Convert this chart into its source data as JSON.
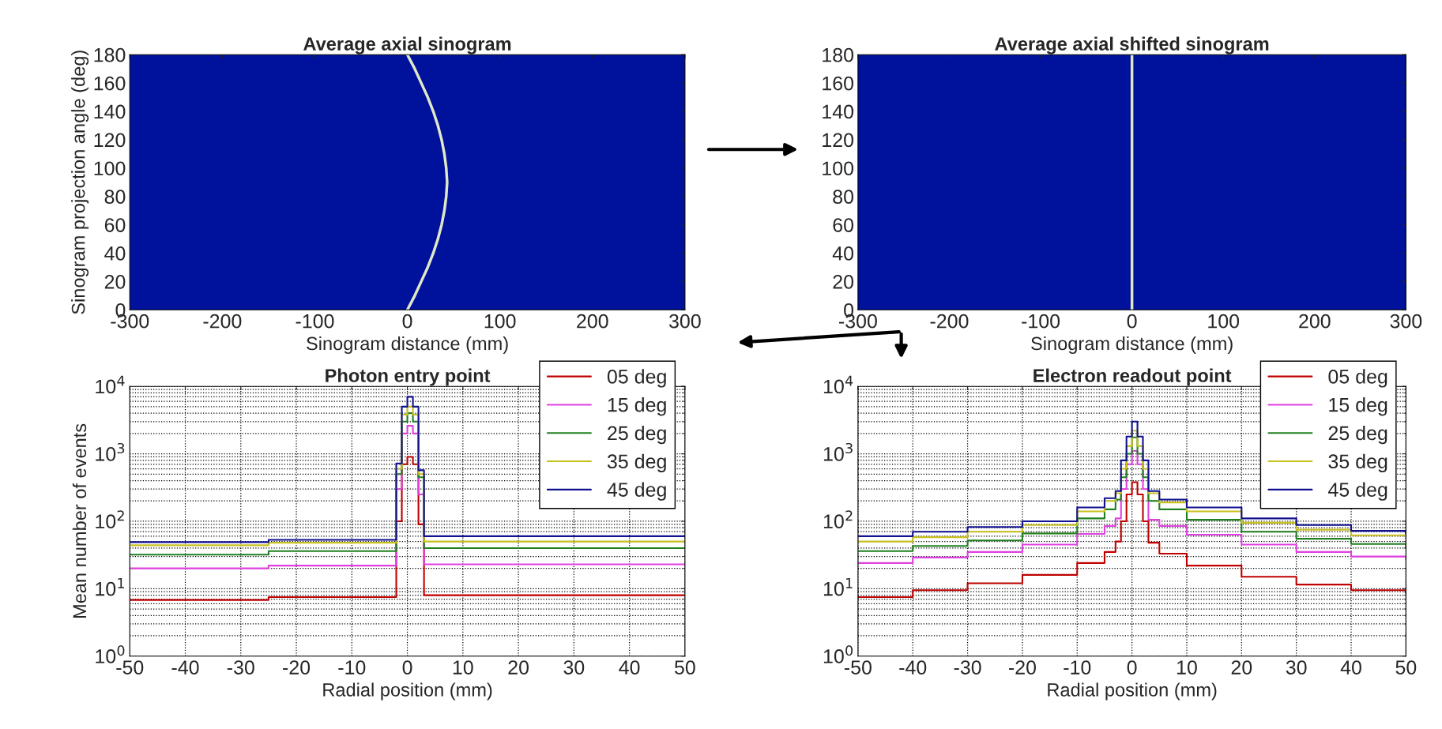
{
  "chart_data": [
    {
      "type": "line",
      "title": "Average axial sinogram",
      "xlabel": "Sinogram distance (mm)",
      "ylabel": "Sinogram projection angle (deg)",
      "xlim": [
        -300,
        300
      ],
      "xticks": [
        -300,
        -200,
        -100,
        0,
        100,
        200,
        300
      ],
      "ylim": [
        0,
        180
      ],
      "yticks": [
        0,
        20,
        40,
        60,
        80,
        100,
        120,
        140,
        160,
        180
      ],
      "series": [
        {
          "color": "#e0e8c8",
          "x": [
            0,
            8,
            15,
            22,
            28,
            33,
            37,
            40,
            42,
            43,
            42,
            40,
            37,
            33,
            28,
            22,
            15,
            8,
            0
          ],
          "values": [
            0,
            10,
            20,
            30,
            40,
            50,
            60,
            70,
            80,
            90,
            100,
            110,
            120,
            130,
            140,
            150,
            160,
            170,
            180
          ]
        }
      ]
    },
    {
      "type": "line",
      "title": "Average axial shifted sinogram",
      "xlabel": "Sinogram distance (mm)",
      "xlim": [
        -300,
        300
      ],
      "xticks": [
        -300,
        -200,
        -100,
        0,
        100,
        200,
        300
      ],
      "ylim": [
        0,
        180
      ],
      "yticks": [
        0,
        20,
        40,
        60,
        80,
        100,
        120,
        140,
        160,
        180
      ],
      "series": [
        {
          "color": "#e0e8c8",
          "x": [
            0,
            0,
            0,
            0,
            0,
            0,
            0,
            0,
            0,
            0
          ],
          "values": [
            0,
            20,
            40,
            60,
            80,
            100,
            120,
            140,
            160,
            180
          ]
        }
      ]
    },
    {
      "type": "step",
      "title": "Photon entry point",
      "xlabel": "Radial position (mm)",
      "ylabel": "Mean number of events",
      "log": "y",
      "grid": true,
      "legend": "top right",
      "xlim": [
        -50,
        50
      ],
      "xticks": [
        -50,
        -40,
        -30,
        -20,
        -10,
        0,
        10,
        20,
        30,
        40,
        50
      ],
      "ylim": [
        1,
        10000
      ],
      "yticks": [
        {
          "value": 1,
          "label": "10$^{0}$"
        },
        {
          "value": 10,
          "label": "10$^{1}$"
        },
        {
          "value": 100,
          "label": "10$^{2}$"
        },
        {
          "value": 1000,
          "label": "10$^{3}$"
        },
        {
          "value": 10000,
          "label": "10$^{4}$"
        }
      ],
      "x": [
        -50,
        -25,
        -2,
        -1,
        0,
        1,
        2,
        3,
        25,
        50
      ],
      "series": [
        {
          "name": "05 deg",
          "color": "#c00000",
          "values": [
            6.8,
            7.5,
            100,
            700,
            900,
            700,
            90,
            8,
            8,
            8
          ]
        },
        {
          "name": "15 deg",
          "color": "#e040e0",
          "values": [
            20,
            22,
            300,
            2000,
            2600,
            2000,
            250,
            23,
            23,
            23
          ]
        },
        {
          "name": "25 deg",
          "color": "#208020",
          "values": [
            32,
            36,
            500,
            3000,
            4000,
            3000,
            450,
            40,
            40,
            40
          ]
        },
        {
          "name": "35 deg",
          "color": "#c8c020",
          "values": [
            44,
            48,
            600,
            3800,
            5000,
            3800,
            500,
            50,
            50,
            50
          ]
        },
        {
          "name": "45 deg",
          "color": "#101090",
          "values": [
            49,
            53,
            720,
            5000,
            7000,
            5000,
            570,
            60,
            60,
            60
          ]
        }
      ]
    },
    {
      "type": "step",
      "title": "Electron readout point",
      "xlabel": "Radial position (mm)",
      "log": "y",
      "grid": true,
      "legend": "top right",
      "xlim": [
        -50,
        50
      ],
      "xticks": [
        -50,
        -40,
        -30,
        -20,
        -10,
        0,
        10,
        20,
        30,
        40,
        50
      ],
      "ylim": [
        1,
        10000
      ],
      "yticks": [
        {
          "value": 1,
          "label": "10$^{0}$"
        },
        {
          "value": 10,
          "label": "10$^{1}$"
        },
        {
          "value": 100,
          "label": "10$^{2}$"
        },
        {
          "value": 1000,
          "label": "10$^{3}$"
        },
        {
          "value": 10000,
          "label": "10$^{4}$"
        }
      ],
      "x": [
        -50,
        -40,
        -30,
        -20,
        -10,
        -5,
        -3,
        -2,
        -1,
        0,
        1,
        2,
        3,
        5,
        10,
        20,
        30,
        40,
        50
      ],
      "series": [
        {
          "name": "05 deg",
          "color": "#c00000",
          "values": [
            7.5,
            9.5,
            12,
            16,
            24,
            35,
            50,
            100,
            250,
            380,
            250,
            100,
            48,
            33,
            22,
            15,
            11.5,
            9.5,
            8.5
          ]
        },
        {
          "name": "15 deg",
          "color": "#e040e0",
          "values": [
            24,
            29,
            35,
            45,
            65,
            85,
            110,
            300,
            700,
            1100,
            700,
            300,
            105,
            85,
            63,
            45,
            35,
            30,
            27
          ]
        },
        {
          "name": "25 deg",
          "color": "#208020",
          "values": [
            36,
            43,
            52,
            66,
            110,
            150,
            210,
            450,
            1000,
            1750,
            1000,
            450,
            200,
            150,
            105,
            70,
            55,
            46,
            41
          ]
        },
        {
          "name": "35 deg",
          "color": "#c8c020",
          "values": [
            50,
            58,
            70,
            88,
            140,
            200,
            260,
            600,
            1300,
            2200,
            1300,
            600,
            260,
            190,
            140,
            95,
            75,
            62,
            54
          ]
        },
        {
          "name": "45 deg",
          "color": "#101090",
          "values": [
            60,
            70,
            82,
            100,
            160,
            220,
            280,
            800,
            1800,
            3000,
            1800,
            800,
            280,
            210,
            160,
            110,
            88,
            72,
            65
          ]
        }
      ]
    }
  ]
}
